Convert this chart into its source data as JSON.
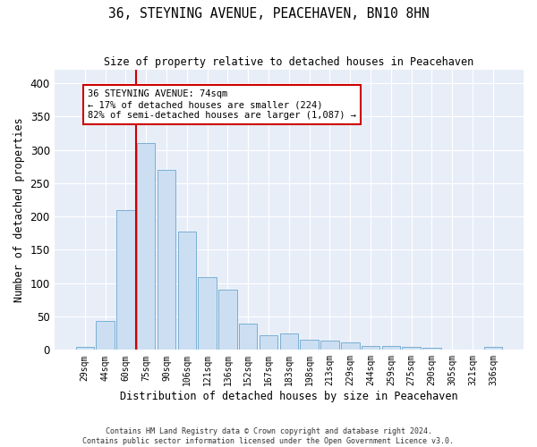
{
  "title": "36, STEYNING AVENUE, PEACEHAVEN, BN10 8HN",
  "subtitle": "Size of property relative to detached houses in Peacehaven",
  "xlabel": "Distribution of detached houses by size in Peacehaven",
  "ylabel": "Number of detached properties",
  "bar_color": "#ccdff2",
  "bar_edge_color": "#7bafd4",
  "background_color": "#e8eef8",
  "grid_color": "white",
  "categories": [
    "29sqm",
    "44sqm",
    "60sqm",
    "75sqm",
    "90sqm",
    "106sqm",
    "121sqm",
    "136sqm",
    "152sqm",
    "167sqm",
    "183sqm",
    "198sqm",
    "213sqm",
    "229sqm",
    "244sqm",
    "259sqm",
    "275sqm",
    "290sqm",
    "305sqm",
    "321sqm",
    "336sqm"
  ],
  "values": [
    5,
    43,
    210,
    310,
    270,
    177,
    109,
    90,
    39,
    22,
    25,
    15,
    14,
    11,
    6,
    6,
    4,
    3,
    0,
    0,
    5
  ],
  "vline_color": "#cc0000",
  "vline_index": 3,
  "annotation_text": "36 STEYNING AVENUE: 74sqm\n← 17% of detached houses are smaller (224)\n82% of semi-detached houses are larger (1,087) →",
  "annotation_box_color": "white",
  "annotation_box_edge": "#cc0000",
  "ylim": [
    0,
    420
  ],
  "yticks": [
    0,
    50,
    100,
    150,
    200,
    250,
    300,
    350,
    400
  ],
  "footer1": "Contains HM Land Registry data © Crown copyright and database right 2024.",
  "footer2": "Contains public sector information licensed under the Open Government Licence v3.0."
}
